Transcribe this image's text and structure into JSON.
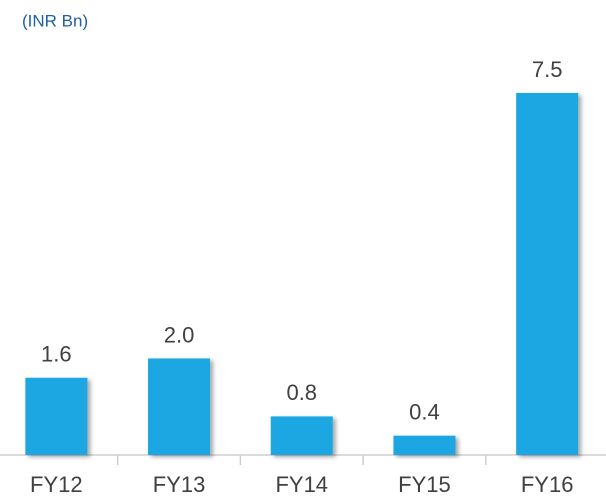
{
  "chart_data": {
    "type": "bar",
    "subtitle": "(INR Bn)",
    "categories": [
      "FY12",
      "FY13",
      "FY14",
      "FY15",
      "FY16"
    ],
    "values": [
      1.6,
      2.0,
      0.8,
      0.4,
      7.5
    ],
    "value_labels": [
      "1.6",
      "2.0",
      "0.8",
      "0.4",
      "7.5"
    ],
    "color": "#1ba7e2"
  }
}
